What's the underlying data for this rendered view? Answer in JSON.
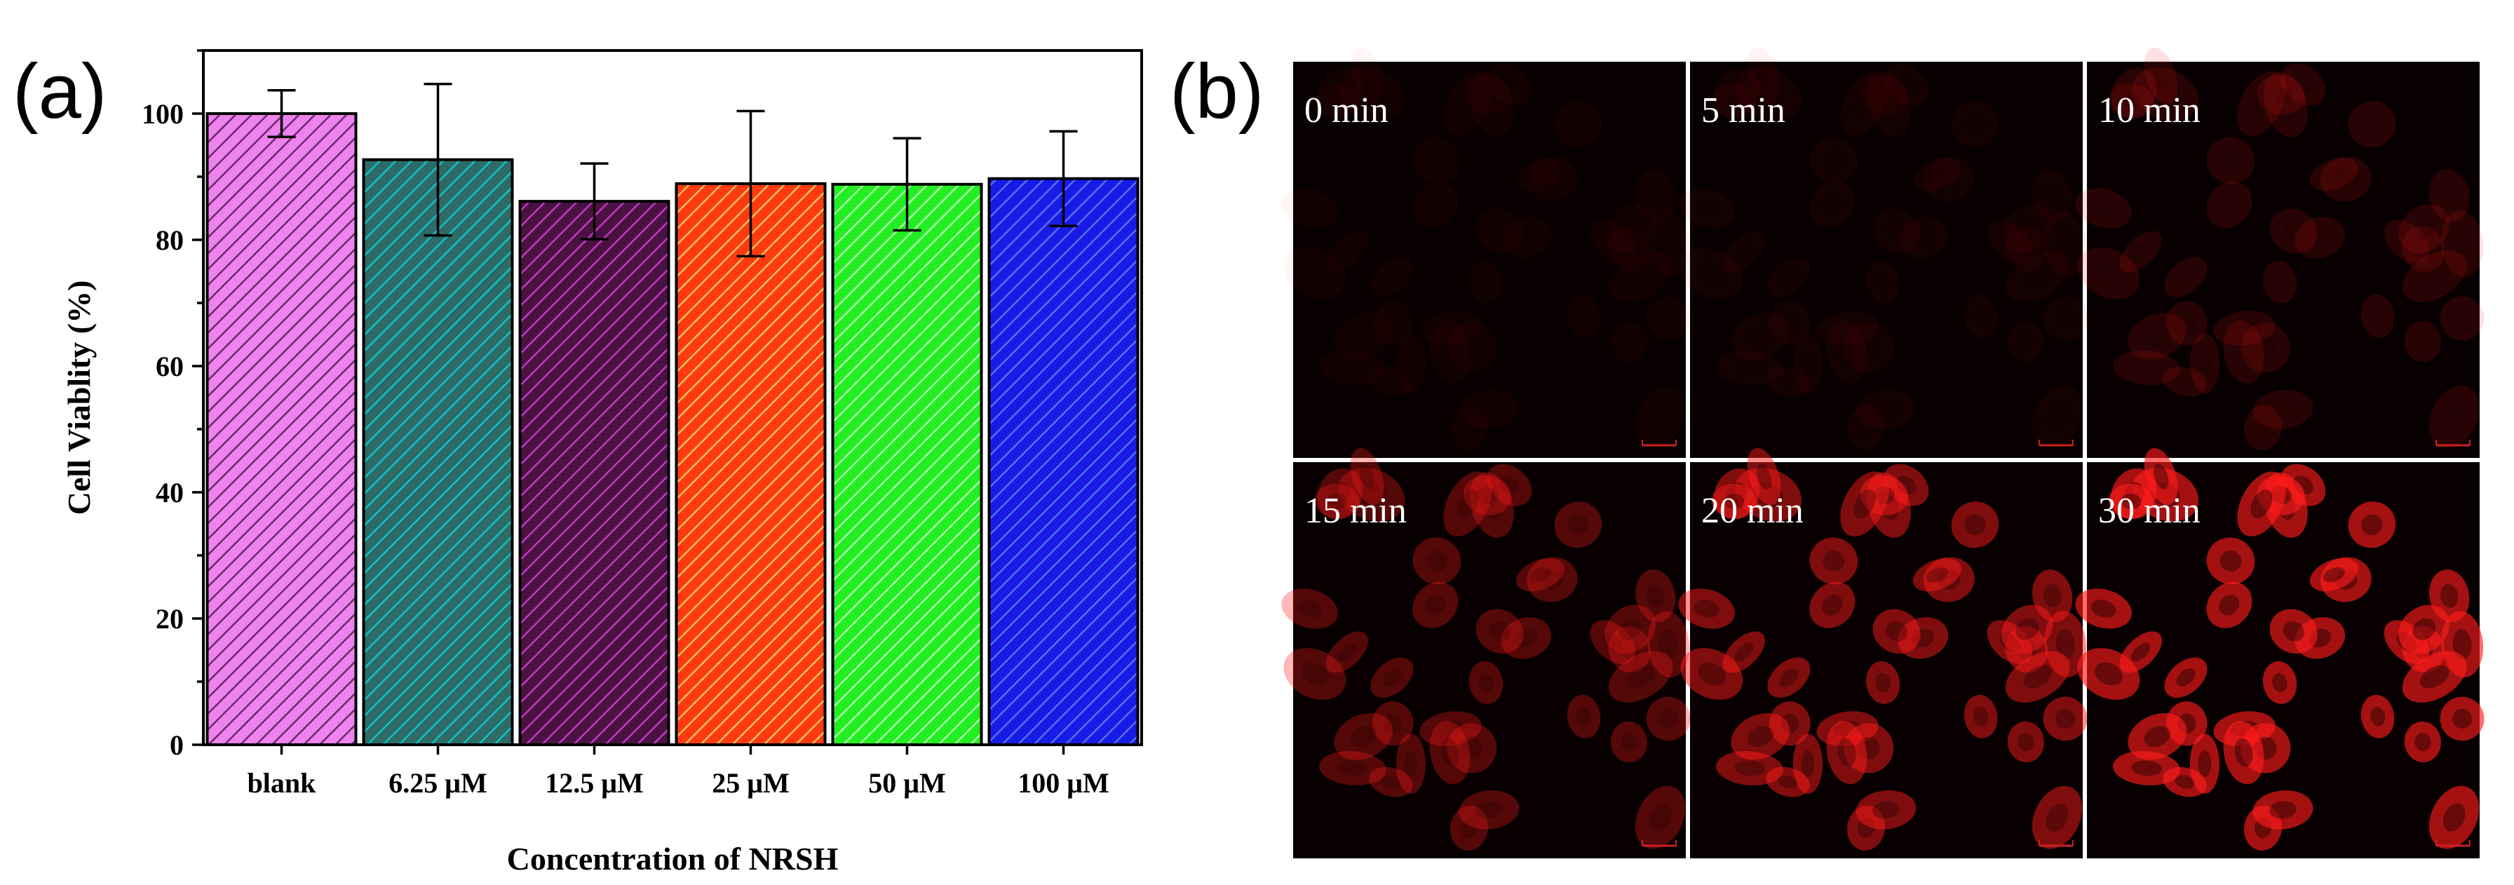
{
  "panels": {
    "a": {
      "letter": "(a)"
    },
    "b": {
      "letter": "(b)"
    }
  },
  "chart_data": {
    "type": "bar",
    "title": "",
    "xlabel": "Concentration of NRSH",
    "ylabel": "Cell Viablity (%)",
    "ylim": [
      0,
      110
    ],
    "yticks": [
      0,
      20,
      40,
      60,
      80,
      100
    ],
    "grid": false,
    "categories": [
      "blank",
      "6.25 μM",
      "12.5 μM",
      "25 μM",
      "50 μM",
      "100 μM"
    ],
    "values": [
      100.0,
      92.7,
      86.1,
      88.9,
      88.8,
      89.7
    ],
    "errors": [
      3.7,
      12.0,
      6.0,
      11.5,
      7.3,
      7.5
    ],
    "bar_colors": [
      "#ee82ee",
      "#2e6b66",
      "#4a1240",
      "#ff3a10",
      "#22ee22",
      "#1a1ae6"
    ],
    "hatch_colors": [
      "#6a2a6a",
      "#0cc4c8",
      "#c436c4",
      "#ffc060",
      "#aaffaa",
      "#5070ff"
    ]
  },
  "micrographs": {
    "background": "#080000",
    "signal_color": "#ff1a1a",
    "scale_bar_color": "#cc2020",
    "labels": [
      "0 min",
      "5 min",
      "10 min",
      "15 min",
      "20 min",
      "30 min"
    ],
    "intensity": [
      0.05,
      0.07,
      0.18,
      0.42,
      0.65,
      0.85
    ]
  }
}
